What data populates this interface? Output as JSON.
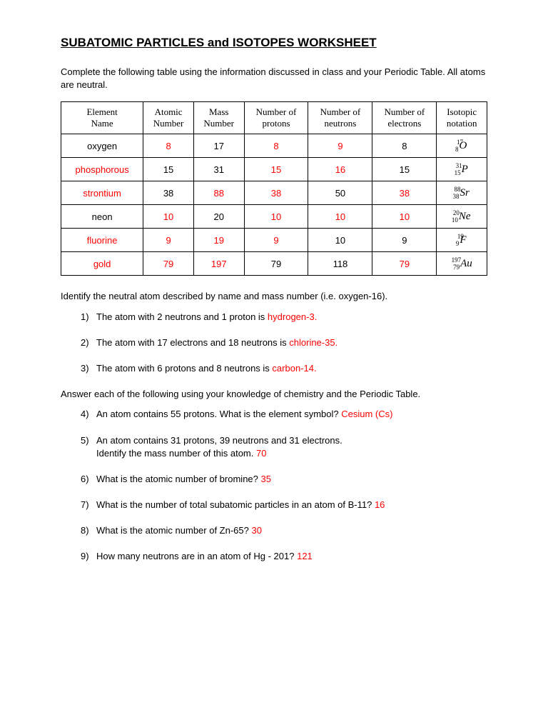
{
  "title": "SUBATOMIC PARTICLES and ISOTOPES WORKSHEET",
  "intro": "Complete the following table using the information discussed in class and your Periodic Table.  All atoms are neutral.",
  "table": {
    "headers": [
      "Element Name",
      "Atomic Number",
      "Mass Number",
      "Number of protons",
      "Number of neutrons",
      "Number of electrons",
      "Isotopic notation"
    ],
    "rows": [
      {
        "name": "oxygen",
        "nameRed": false,
        "atomic": "8",
        "atomicRed": true,
        "mass": "17",
        "massRed": false,
        "protons": "8",
        "protonsRed": true,
        "neutrons": "9",
        "neutronsRed": true,
        "electrons": "8",
        "electronsRed": false,
        "sup": "17",
        "sub": "8",
        "sym": "O"
      },
      {
        "name": "phosphorous",
        "nameRed": true,
        "atomic": "15",
        "atomicRed": false,
        "mass": "31",
        "massRed": false,
        "protons": "15",
        "protonsRed": true,
        "neutrons": "16",
        "neutronsRed": true,
        "electrons": "15",
        "electronsRed": false,
        "sup": "31",
        "sub": "15",
        "sym": "P"
      },
      {
        "name": "strontium",
        "nameRed": true,
        "atomic": "38",
        "atomicRed": false,
        "mass": "88",
        "massRed": true,
        "protons": "38",
        "protonsRed": true,
        "neutrons": "50",
        "neutronsRed": false,
        "electrons": "38",
        "electronsRed": true,
        "sup": "88",
        "sub": "38",
        "sym": "Sr"
      },
      {
        "name": "neon",
        "nameRed": false,
        "atomic": "10",
        "atomicRed": true,
        "mass": "20",
        "massRed": false,
        "protons": "10",
        "protonsRed": true,
        "neutrons": "10",
        "neutronsRed": true,
        "electrons": "10",
        "electronsRed": true,
        "sup": "20",
        "sub": "10",
        "sym": "Ne"
      },
      {
        "name": "fluorine",
        "nameRed": true,
        "atomic": "9",
        "atomicRed": true,
        "mass": "19",
        "massRed": true,
        "protons": "9",
        "protonsRed": true,
        "neutrons": "10",
        "neutronsRed": false,
        "electrons": "9",
        "electronsRed": false,
        "sup": "19",
        "sub": "9",
        "sym": "F"
      },
      {
        "name": "gold",
        "nameRed": true,
        "atomic": "79",
        "atomicRed": true,
        "mass": "197",
        "massRed": true,
        "protons": "79",
        "protonsRed": false,
        "neutrons": "118",
        "neutronsRed": false,
        "electrons": "79",
        "electronsRed": true,
        "sup": "197",
        "sub": "79",
        "sym": "Au"
      }
    ]
  },
  "section1": "Identify the neutral atom described by name and mass number (i.e. oxygen-16).",
  "q1": {
    "num": "1)",
    "text": "The atom with 2 neutrons and 1 proton is ",
    "ans": "hydrogen-3."
  },
  "q2": {
    "num": "2)",
    "text": "The atom with 17 electrons and 18 neutrons is ",
    "ans": "chlorine-35."
  },
  "q3": {
    "num": "3)",
    "text": "The atom with 6 protons and 8 neutrons is ",
    "ans": "carbon-14."
  },
  "section2": "Answer each of the following using your knowledge of chemistry and the Periodic Table.",
  "q4": {
    "num": "4)",
    "text": "An atom contains 55 protons.  What is the element symbol?  ",
    "ans": "Cesium (Cs)"
  },
  "q5": {
    "num": "5)",
    "text1": "An atom contains 31 protons, 39 neutrons and 31 electrons.",
    "text2": "Identify the mass number of this atom.  ",
    "ans": "70"
  },
  "q6": {
    "num": "6)",
    "text": "What is the atomic number of bromine?  ",
    "ans": "35"
  },
  "q7": {
    "num": "7)",
    "text": "What is the number of total subatomic particles in an atom of B-11? ",
    "ans": "16"
  },
  "q8": {
    "num": "8)",
    "text": "What is the atomic number of Zn-65?     ",
    "ans": "30"
  },
  "q9": {
    "num": "9)",
    "text": "How many neutrons are in an atom of Hg - 201?  ",
    "ans": "121"
  }
}
